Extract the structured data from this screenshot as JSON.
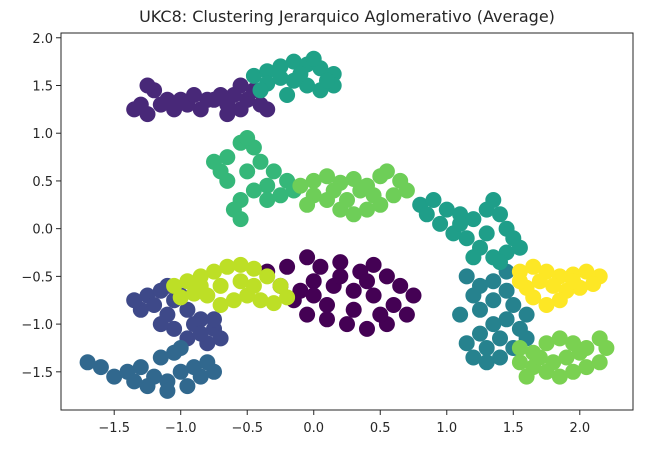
{
  "chart_data": {
    "type": "scatter",
    "title": "UKC8: Clustering Jerarquico Aglomerativo (Average)",
    "xlabel": "",
    "ylabel": "",
    "xlim": [
      -1.9,
      2.4
    ],
    "ylim": [
      -1.9,
      2.05
    ],
    "xticks": [
      -1.5,
      -1.0,
      -0.5,
      0.0,
      0.5,
      1.0,
      1.5,
      2.0
    ],
    "xtick_labels": [
      "−1.5",
      "−1.0",
      "−0.5",
      "0.0",
      "0.5",
      "1.0",
      "1.5",
      "2.0"
    ],
    "yticks": [
      -1.5,
      -1.0,
      -0.5,
      0.0,
      0.5,
      1.0,
      1.5,
      2.0
    ],
    "ytick_labels": [
      "−1.5",
      "−1.0",
      "−0.5",
      "0.0",
      "0.5",
      "1.0",
      "1.5",
      "2.0"
    ],
    "grid": false,
    "legend": "none",
    "colormap": "viridis",
    "clusters": [
      {
        "color": "#440154",
        "points": [
          [
            -0.05,
            -0.3
          ],
          [
            0.05,
            -0.4
          ],
          [
            0.2,
            -0.35
          ],
          [
            0.35,
            -0.45
          ],
          [
            0.45,
            -0.38
          ],
          [
            0.55,
            -0.5
          ],
          [
            0.65,
            -0.6
          ],
          [
            0.75,
            -0.7
          ],
          [
            0.7,
            -0.9
          ],
          [
            0.55,
            -1.0
          ],
          [
            0.4,
            -1.05
          ],
          [
            0.25,
            -1.0
          ],
          [
            0.1,
            -0.95
          ],
          [
            -0.05,
            -0.9
          ],
          [
            -0.15,
            -0.75
          ],
          [
            -0.25,
            -0.6
          ],
          [
            -0.35,
            -0.45
          ],
          [
            -0.2,
            -0.4
          ],
          [
            0.0,
            -0.55
          ],
          [
            0.15,
            -0.6
          ],
          [
            0.3,
            -0.65
          ],
          [
            0.45,
            -0.7
          ],
          [
            0.6,
            -0.8
          ],
          [
            0.3,
            -0.85
          ],
          [
            0.1,
            -0.8
          ],
          [
            -0.1,
            -0.65
          ],
          [
            0.2,
            -0.5
          ],
          [
            0.4,
            -0.55
          ],
          [
            0.5,
            -0.9
          ],
          [
            0.0,
            -0.7
          ]
        ]
      },
      {
        "color": "#482878",
        "points": [
          [
            -1.35,
            1.25
          ],
          [
            -1.25,
            1.2
          ],
          [
            -1.15,
            1.3
          ],
          [
            -1.05,
            1.25
          ],
          [
            -0.95,
            1.3
          ],
          [
            -0.85,
            1.25
          ],
          [
            -0.75,
            1.35
          ],
          [
            -0.65,
            1.3
          ],
          [
            -0.55,
            1.25
          ],
          [
            -0.5,
            1.35
          ],
          [
            -0.45,
            1.45
          ],
          [
            -0.55,
            1.5
          ],
          [
            -0.6,
            1.4
          ],
          [
            -0.7,
            1.4
          ],
          [
            -0.8,
            1.35
          ],
          [
            -0.9,
            1.4
          ],
          [
            -1.0,
            1.35
          ],
          [
            -1.1,
            1.35
          ],
          [
            -1.2,
            1.45
          ],
          [
            -1.25,
            1.5
          ],
          [
            -1.3,
            1.3
          ],
          [
            -0.4,
            1.3
          ],
          [
            -0.35,
            1.25
          ],
          [
            -0.65,
            1.2
          ]
        ]
      },
      {
        "color": "#3e4989",
        "points": [
          [
            -1.25,
            -0.7
          ],
          [
            -1.15,
            -0.65
          ],
          [
            -1.05,
            -0.75
          ],
          [
            -0.95,
            -0.85
          ],
          [
            -0.85,
            -0.95
          ],
          [
            -0.75,
            -1.05
          ],
          [
            -0.7,
            -1.15
          ],
          [
            -0.8,
            -1.2
          ],
          [
            -0.95,
            -1.15
          ],
          [
            -1.05,
            -1.05
          ],
          [
            -1.15,
            -1.0
          ],
          [
            -1.3,
            -0.85
          ],
          [
            -1.35,
            -0.75
          ],
          [
            -1.2,
            -0.8
          ],
          [
            -1.1,
            -0.9
          ],
          [
            -0.9,
            -1.0
          ],
          [
            -0.85,
            -1.1
          ],
          [
            -1.0,
            -0.7
          ],
          [
            -1.1,
            -0.6
          ],
          [
            -0.75,
            -0.95
          ]
        ]
      },
      {
        "color": "#31688e",
        "points": [
          [
            -1.7,
            -1.4
          ],
          [
            -1.6,
            -1.45
          ],
          [
            -1.5,
            -1.55
          ],
          [
            -1.4,
            -1.5
          ],
          [
            -1.3,
            -1.45
          ],
          [
            -1.2,
            -1.55
          ],
          [
            -1.1,
            -1.6
          ],
          [
            -1.0,
            -1.5
          ],
          [
            -0.9,
            -1.45
          ],
          [
            -0.8,
            -1.4
          ],
          [
            -0.75,
            -1.5
          ],
          [
            -1.05,
            -1.3
          ],
          [
            -1.15,
            -1.35
          ],
          [
            -1.25,
            -1.65
          ],
          [
            -1.1,
            -1.7
          ],
          [
            -0.95,
            -1.65
          ],
          [
            -1.35,
            -1.6
          ],
          [
            -1.0,
            -1.25
          ],
          [
            -0.85,
            -1.55
          ]
        ]
      },
      {
        "color": "#26828e",
        "points": [
          [
            1.15,
            -0.5
          ],
          [
            1.25,
            -0.6
          ],
          [
            1.35,
            -0.55
          ],
          [
            1.45,
            -0.65
          ],
          [
            1.5,
            -0.8
          ],
          [
            1.45,
            -0.95
          ],
          [
            1.35,
            -1.0
          ],
          [
            1.25,
            -1.1
          ],
          [
            1.15,
            -1.2
          ],
          [
            1.2,
            -1.35
          ],
          [
            1.3,
            -1.4
          ],
          [
            1.4,
            -1.35
          ],
          [
            1.5,
            -1.25
          ],
          [
            1.6,
            -1.15
          ],
          [
            1.55,
            -1.05
          ],
          [
            1.4,
            -1.15
          ],
          [
            1.3,
            -1.25
          ],
          [
            1.25,
            -0.85
          ],
          [
            1.35,
            -0.75
          ],
          [
            1.2,
            -0.7
          ],
          [
            1.1,
            -0.9
          ],
          [
            1.6,
            -0.9
          ],
          [
            1.45,
            -0.45
          ]
        ]
      },
      {
        "color": "#1f9e89",
        "points": [
          [
            0.8,
            0.25
          ],
          [
            0.9,
            0.3
          ],
          [
            1.0,
            0.2
          ],
          [
            1.1,
            0.15
          ],
          [
            1.2,
            0.1
          ],
          [
            1.3,
            0.2
          ],
          [
            1.35,
            0.3
          ],
          [
            1.4,
            0.15
          ],
          [
            1.45,
            0.0
          ],
          [
            1.5,
            -0.1
          ],
          [
            1.45,
            -0.25
          ],
          [
            1.35,
            -0.3
          ],
          [
            1.25,
            -0.2
          ],
          [
            1.15,
            -0.1
          ],
          [
            1.05,
            -0.05
          ],
          [
            0.95,
            0.05
          ],
          [
            0.85,
            0.15
          ],
          [
            1.3,
            -0.05
          ],
          [
            1.2,
            -0.3
          ],
          [
            1.1,
            0.05
          ],
          [
            1.4,
            -0.35
          ],
          [
            1.55,
            -0.2
          ]
        ]
      },
      {
        "color": "#1fa187",
        "points": [
          [
            -0.45,
            1.6
          ],
          [
            -0.35,
            1.65
          ],
          [
            -0.25,
            1.7
          ],
          [
            -0.15,
            1.75
          ],
          [
            -0.05,
            1.72
          ],
          [
            0.05,
            1.68
          ],
          [
            0.15,
            1.62
          ],
          [
            0.15,
            1.5
          ],
          [
            0.05,
            1.45
          ],
          [
            -0.05,
            1.5
          ],
          [
            -0.15,
            1.55
          ],
          [
            -0.25,
            1.58
          ],
          [
            -0.35,
            1.52
          ],
          [
            -0.4,
            1.45
          ],
          [
            -0.2,
            1.4
          ],
          [
            0.1,
            1.55
          ],
          [
            -0.1,
            1.62
          ],
          [
            0.0,
            1.78
          ]
        ]
      },
      {
        "color": "#35b779",
        "points": [
          [
            -0.75,
            0.7
          ],
          [
            -0.65,
            0.75
          ],
          [
            -0.55,
            0.9
          ],
          [
            -0.45,
            0.85
          ],
          [
            -0.4,
            0.7
          ],
          [
            -0.3,
            0.6
          ],
          [
            -0.2,
            0.5
          ],
          [
            -0.15,
            0.4
          ],
          [
            -0.25,
            0.35
          ],
          [
            -0.35,
            0.45
          ],
          [
            -0.45,
            0.4
          ],
          [
            -0.55,
            0.3
          ],
          [
            -0.6,
            0.2
          ],
          [
            -0.55,
            0.1
          ],
          [
            -0.65,
            0.5
          ],
          [
            -0.7,
            0.6
          ],
          [
            -0.5,
            0.6
          ],
          [
            -0.35,
            0.3
          ],
          [
            -0.5,
            0.95
          ]
        ]
      },
      {
        "color": "#6ece58",
        "points": [
          [
            -0.1,
            0.45
          ],
          [
            0.0,
            0.5
          ],
          [
            0.1,
            0.55
          ],
          [
            0.2,
            0.48
          ],
          [
            0.3,
            0.52
          ],
          [
            0.4,
            0.45
          ],
          [
            0.5,
            0.55
          ],
          [
            0.55,
            0.6
          ],
          [
            0.65,
            0.5
          ],
          [
            0.7,
            0.4
          ],
          [
            0.6,
            0.35
          ],
          [
            0.5,
            0.25
          ],
          [
            0.4,
            0.2
          ],
          [
            0.3,
            0.15
          ],
          [
            0.2,
            0.2
          ],
          [
            0.1,
            0.3
          ],
          [
            0.0,
            0.35
          ],
          [
            -0.05,
            0.25
          ],
          [
            0.45,
            0.35
          ],
          [
            0.25,
            0.3
          ],
          [
            0.15,
            0.4
          ],
          [
            0.35,
            0.4
          ]
        ]
      },
      {
        "color": "#7ad151",
        "points": [
          [
            1.55,
            -1.25
          ],
          [
            1.65,
            -1.3
          ],
          [
            1.75,
            -1.2
          ],
          [
            1.85,
            -1.15
          ],
          [
            1.95,
            -1.2
          ],
          [
            2.05,
            -1.25
          ],
          [
            2.15,
            -1.15
          ],
          [
            2.2,
            -1.25
          ],
          [
            2.15,
            -1.4
          ],
          [
            2.05,
            -1.45
          ],
          [
            1.95,
            -1.5
          ],
          [
            1.85,
            -1.55
          ],
          [
            1.75,
            -1.5
          ],
          [
            1.65,
            -1.45
          ],
          [
            1.55,
            -1.4
          ],
          [
            1.6,
            -1.55
          ],
          [
            1.9,
            -1.35
          ],
          [
            2.0,
            -1.3
          ],
          [
            1.7,
            -1.35
          ],
          [
            1.8,
            -1.4
          ]
        ]
      },
      {
        "color": "#bddf26",
        "points": [
          [
            -1.05,
            -0.6
          ],
          [
            -0.95,
            -0.55
          ],
          [
            -0.85,
            -0.5
          ],
          [
            -0.75,
            -0.45
          ],
          [
            -0.65,
            -0.4
          ],
          [
            -0.55,
            -0.38
          ],
          [
            -0.45,
            -0.42
          ],
          [
            -0.35,
            -0.5
          ],
          [
            -0.25,
            -0.6
          ],
          [
            -0.2,
            -0.72
          ],
          [
            -0.3,
            -0.78
          ],
          [
            -0.4,
            -0.75
          ],
          [
            -0.5,
            -0.7
          ],
          [
            -0.6,
            -0.75
          ],
          [
            -0.7,
            -0.8
          ],
          [
            -0.8,
            -0.7
          ],
          [
            -0.9,
            -0.68
          ],
          [
            -1.0,
            -0.72
          ],
          [
            -0.55,
            -0.55
          ],
          [
            -0.7,
            -0.6
          ],
          [
            -0.45,
            -0.6
          ],
          [
            -0.85,
            -0.6
          ]
        ]
      },
      {
        "color": "#fde725",
        "points": [
          [
            1.55,
            -0.45
          ],
          [
            1.65,
            -0.4
          ],
          [
            1.75,
            -0.45
          ],
          [
            1.85,
            -0.5
          ],
          [
            1.95,
            -0.48
          ],
          [
            2.05,
            -0.45
          ],
          [
            2.15,
            -0.5
          ],
          [
            2.1,
            -0.58
          ],
          [
            2.0,
            -0.62
          ],
          [
            1.9,
            -0.65
          ],
          [
            1.85,
            -0.75
          ],
          [
            1.75,
            -0.8
          ],
          [
            1.65,
            -0.72
          ],
          [
            1.6,
            -0.62
          ],
          [
            1.55,
            -0.55
          ],
          [
            1.8,
            -0.6
          ],
          [
            1.7,
            -0.55
          ],
          [
            1.95,
            -0.55
          ]
        ]
      }
    ]
  }
}
